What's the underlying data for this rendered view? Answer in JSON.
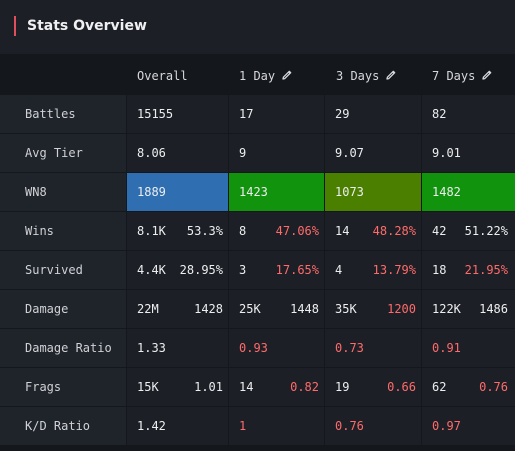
{
  "title": "Stats Overview",
  "columns": [
    "Overall",
    "1 Day",
    "3 Days",
    "7 Days"
  ],
  "colors": {
    "accent": "#e0505a",
    "wn8_overall": "#2f6eb0",
    "wn8_d1": "#12930d",
    "wn8_d3": "#4a7f00",
    "wn8_d7": "#12930d",
    "negative": "#ff6b6b"
  },
  "rows": {
    "battles": {
      "label": "Battles",
      "overall": "15155",
      "d1": "17",
      "d3": "29",
      "d7": "82"
    },
    "avg_tier": {
      "label": "Avg Tier",
      "overall": "8.06",
      "d1": "9",
      "d3": "9.07",
      "d7": "9.01"
    },
    "wn8": {
      "label": "WN8",
      "overall": "1889",
      "d1": "1423",
      "d3": "1073",
      "d7": "1482"
    },
    "wins": {
      "label": "Wins",
      "overall": [
        "8.1K",
        "53.3%"
      ],
      "d1": [
        "8",
        "47.06%"
      ],
      "d3": [
        "14",
        "48.28%"
      ],
      "d7": [
        "42",
        "51.22%"
      ]
    },
    "survived": {
      "label": "Survived",
      "overall": [
        "4.4K",
        "28.95%"
      ],
      "d1": [
        "3",
        "17.65%"
      ],
      "d3": [
        "4",
        "13.79%"
      ],
      "d7": [
        "18",
        "21.95%"
      ]
    },
    "damage": {
      "label": "Damage",
      "overall": [
        "22M",
        "1428"
      ],
      "d1": [
        "25K",
        "1448"
      ],
      "d3": [
        "35K",
        "1200"
      ],
      "d7": [
        "122K",
        "1486"
      ]
    },
    "damage_ratio": {
      "label": "Damage Ratio",
      "overall": "1.33",
      "d1": "0.93",
      "d3": "0.73",
      "d7": "0.91"
    },
    "frags": {
      "label": "Frags",
      "overall": [
        "15K",
        "1.01"
      ],
      "d1": [
        "14",
        "0.82"
      ],
      "d3": [
        "19",
        "0.66"
      ],
      "d7": [
        "62",
        "0.76"
      ]
    },
    "kd_ratio": {
      "label": "K/D Ratio",
      "overall": "1.42",
      "d1": "1",
      "d3": "0.76",
      "d7": "0.97"
    }
  }
}
